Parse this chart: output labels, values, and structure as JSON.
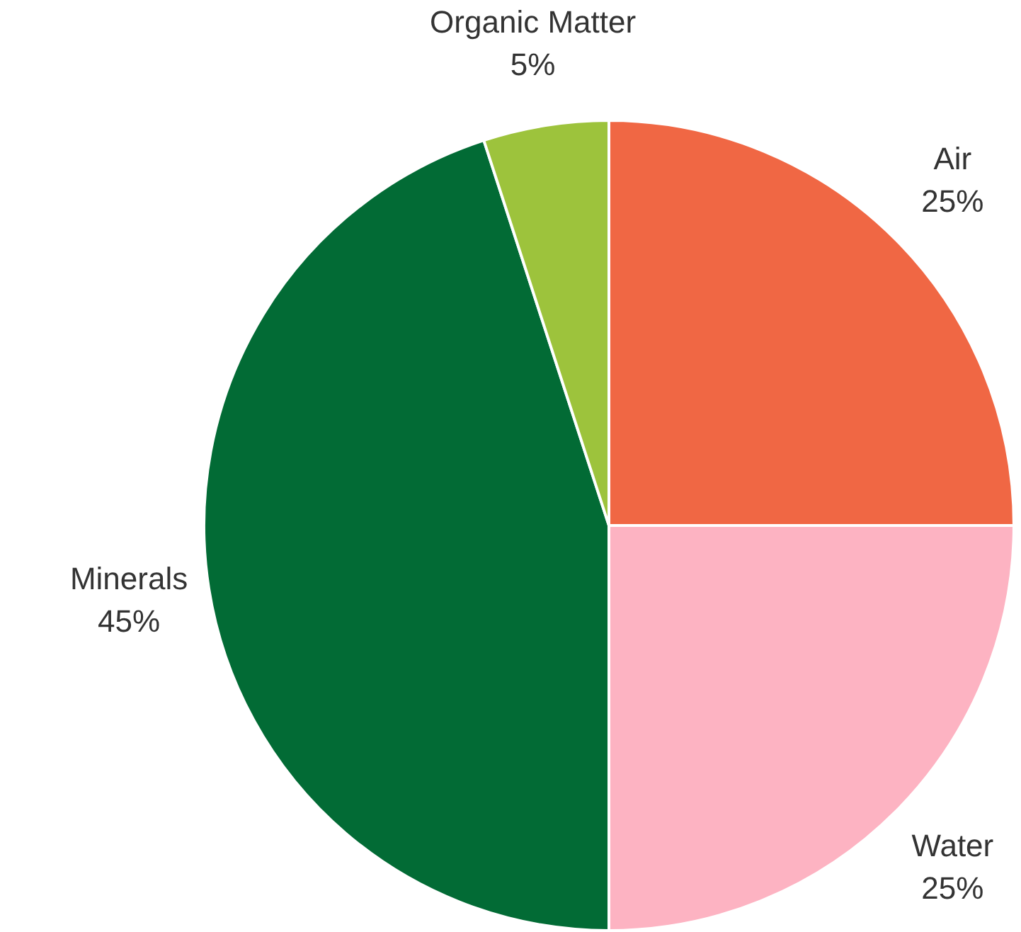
{
  "chart_data": {
    "type": "pie",
    "categories": [
      "Air",
      "Water",
      "Minerals",
      "Organic Matter"
    ],
    "values": [
      25,
      25,
      45,
      5
    ],
    "colors": [
      "#f06744",
      "#fdb3c2",
      "#026b35",
      "#9dc33c"
    ],
    "value_labels": [
      "25%",
      "25%",
      "45%",
      "5%"
    ],
    "legend": false
  }
}
